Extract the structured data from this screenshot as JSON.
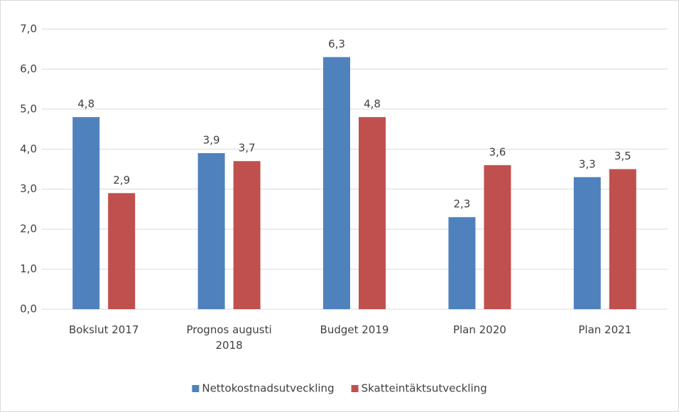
{
  "chart_data": {
    "type": "bar",
    "categories": [
      "Bokslut 2017",
      "Prognos augusti 2018",
      "Budget 2019",
      "Plan 2020",
      "Plan 2021"
    ],
    "series": [
      {
        "name": "Nettokostnadsutveckling",
        "color": "#4f81bd",
        "values": [
          4.8,
          3.9,
          6.3,
          2.3,
          3.3
        ],
        "value_labels": [
          "4,8",
          "3,9",
          "6,3",
          "2,3",
          "3,3"
        ]
      },
      {
        "name": "Skatteintäktsutveckling",
        "color": "#c0504d",
        "values": [
          2.9,
          3.7,
          4.8,
          3.6,
          3.5
        ],
        "value_labels": [
          "2,9",
          "3,7",
          "4,8",
          "3,6",
          "3,5"
        ]
      }
    ],
    "ylim": [
      0,
      7
    ],
    "yticks": [
      {
        "value": 0,
        "label": "0,0"
      },
      {
        "value": 1,
        "label": "1,0"
      },
      {
        "value": 2,
        "label": "2,0"
      },
      {
        "value": 3,
        "label": "3,0"
      },
      {
        "value": 4,
        "label": "4,0"
      },
      {
        "value": 5,
        "label": "5,0"
      },
      {
        "value": 6,
        "label": "6,0"
      },
      {
        "value": 7,
        "label": "7,0"
      }
    ],
    "grid": true,
    "legend": "bottom"
  }
}
